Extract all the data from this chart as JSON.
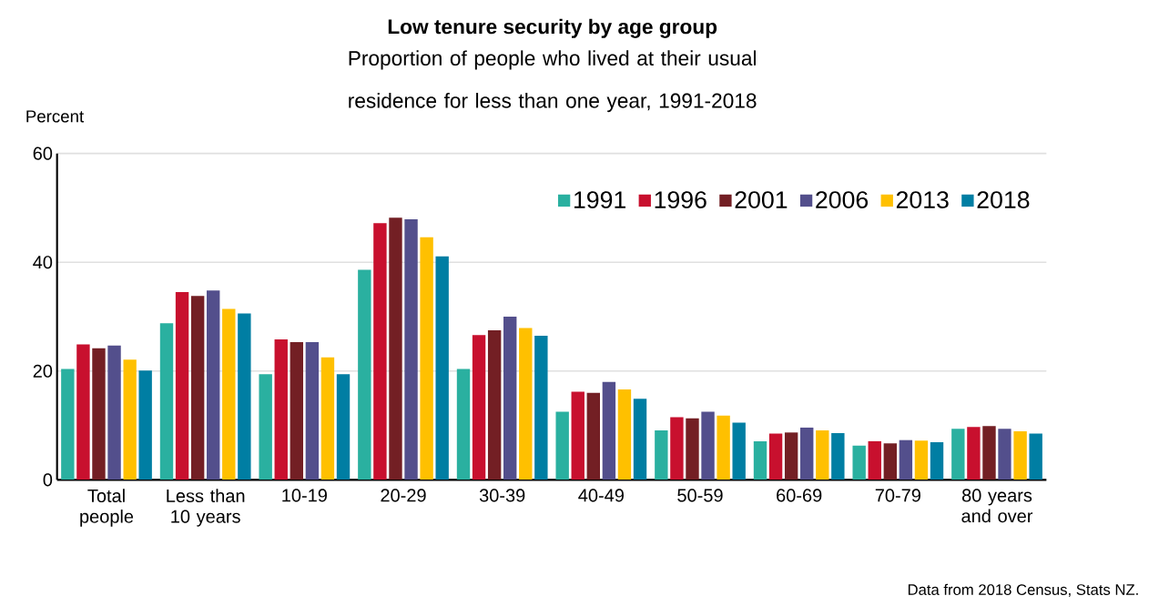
{
  "chart_data": {
    "type": "bar",
    "title": "Low tenure security by age group",
    "subtitle": "Proportion of people who lived at their usual residence for less than one year, 1991-2018",
    "ylabel": "Percent",
    "categories": [
      "Total people",
      "Less than 10 years",
      "10-19",
      "20-29",
      "30-39",
      "40-49",
      "50-59",
      "60-69",
      "70-79",
      "80 years and over"
    ],
    "series": [
      {
        "name": "1991",
        "color": "#2ab0a0",
        "values": [
          20.4,
          28.8,
          19.4,
          38.6,
          20.4,
          12.5,
          9.1,
          7.1,
          6.3,
          9.4
        ]
      },
      {
        "name": "1996",
        "color": "#c8102e",
        "values": [
          24.9,
          34.5,
          25.8,
          47.2,
          26.6,
          16.2,
          11.5,
          8.5,
          7.1,
          9.7
        ]
      },
      {
        "name": "2001",
        "color": "#731f24",
        "values": [
          24.2,
          33.8,
          25.3,
          48.2,
          27.5,
          16.0,
          11.3,
          8.7,
          6.7,
          9.9
        ]
      },
      {
        "name": "2006",
        "color": "#534f8c",
        "values": [
          24.7,
          34.8,
          25.3,
          47.9,
          30.0,
          18.0,
          12.5,
          9.6,
          7.3,
          9.4
        ]
      },
      {
        "name": "2013",
        "color": "#ffc000",
        "values": [
          22.1,
          31.4,
          22.5,
          44.6,
          27.9,
          16.6,
          11.8,
          9.1,
          7.2,
          8.9
        ]
      },
      {
        "name": "2018",
        "color": "#007ea3",
        "values": [
          20.1,
          30.6,
          19.4,
          41.1,
          26.5,
          14.9,
          10.5,
          8.6,
          6.9,
          8.5
        ]
      }
    ],
    "ylim": [
      0,
      60
    ],
    "yticks": [
      0,
      20,
      40,
      60
    ],
    "grid": "y",
    "legend": "top right",
    "annotations": [
      "Data from 2018 Census, Stats NZ."
    ]
  }
}
